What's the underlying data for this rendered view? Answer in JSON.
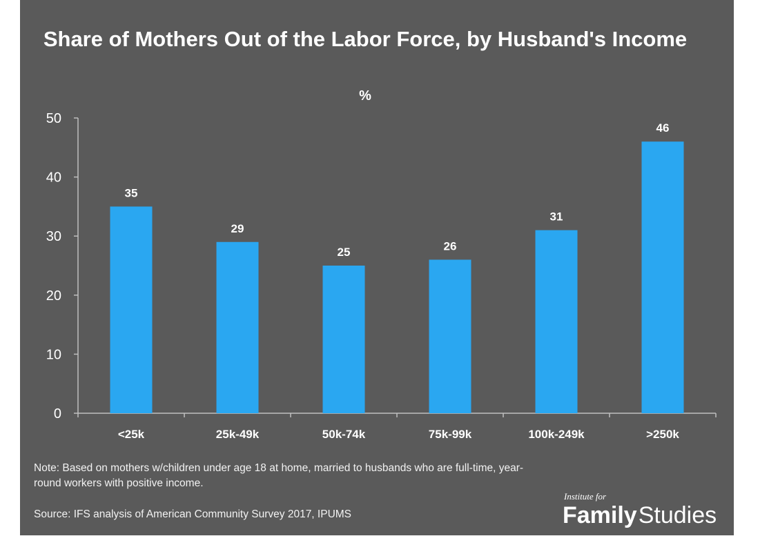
{
  "chart_data": {
    "type": "bar",
    "title": "Share of Mothers Out of the Labor Force, by Husband's Income",
    "subtitle": "%",
    "categories": [
      "<25k",
      "25k-49k",
      "50k-74k",
      "75k-99k",
      "100k-249k",
      ">250k"
    ],
    "values": [
      35,
      29,
      25,
      26,
      31,
      46
    ],
    "data_labels": [
      "35",
      "29",
      "25",
      "26",
      "31",
      "46"
    ],
    "yticks": [
      "0",
      "10",
      "20",
      "30",
      "40",
      "50"
    ],
    "ylim": [
      0,
      50
    ],
    "grid": false,
    "bar_color": "#2aa7f1",
    "background_color": "#5a5a5a"
  },
  "note": "Note: Based on mothers w/children under age 18 at home, married to husbands who are full-time, year-round workers with positive income.",
  "source": "Source: IFS analysis of American Community Survey 2017, IPUMS",
  "logo": {
    "small_text": "Institute for",
    "bold_text": "Family",
    "light_text": "Studies"
  }
}
